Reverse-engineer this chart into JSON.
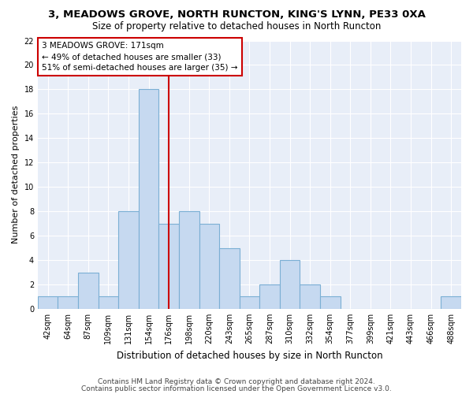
{
  "title1": "3, MEADOWS GROVE, NORTH RUNCTON, KING'S LYNN, PE33 0XA",
  "title2": "Size of property relative to detached houses in North Runcton",
  "xlabel": "Distribution of detached houses by size in North Runcton",
  "ylabel": "Number of detached properties",
  "categories": [
    "42sqm",
    "64sqm",
    "87sqm",
    "109sqm",
    "131sqm",
    "154sqm",
    "176sqm",
    "198sqm",
    "220sqm",
    "243sqm",
    "265sqm",
    "287sqm",
    "310sqm",
    "332sqm",
    "354sqm",
    "377sqm",
    "399sqm",
    "421sqm",
    "443sqm",
    "466sqm",
    "488sqm"
  ],
  "values": [
    1,
    1,
    3,
    1,
    8,
    18,
    7,
    8,
    7,
    5,
    1,
    2,
    4,
    2,
    1,
    0,
    0,
    0,
    0,
    0,
    1
  ],
  "bar_color": "#c6d9f0",
  "bar_edge_color": "#7bafd4",
  "vline_x": 6,
  "vline_color": "#cc0000",
  "annotation_box_text": "3 MEADOWS GROVE: 171sqm\n← 49% of detached houses are smaller (33)\n51% of semi-detached houses are larger (35) →",
  "annotation_box_color": "#cc0000",
  "bg_color": "#e8eef8",
  "ylim": [
    0,
    22
  ],
  "yticks": [
    0,
    2,
    4,
    6,
    8,
    10,
    12,
    14,
    16,
    18,
    20,
    22
  ],
  "footnote1": "Contains HM Land Registry data © Crown copyright and database right 2024.",
  "footnote2": "Contains public sector information licensed under the Open Government Licence v3.0.",
  "title1_fontsize": 9.5,
  "title2_fontsize": 8.5,
  "xlabel_fontsize": 8.5,
  "ylabel_fontsize": 8,
  "annotation_fontsize": 7.5,
  "tick_fontsize": 7,
  "footnote_fontsize": 6.5
}
